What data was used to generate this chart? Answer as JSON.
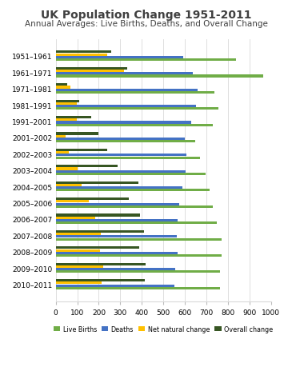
{
  "title": "UK Population Change 1951-2011",
  "subtitle": "Annual Averages: Live Births, Deaths, and Overall Change",
  "categories": [
    "1951–1961",
    "1961–1971",
    "1971–1981",
    "1981–1991",
    "1991–2001",
    "2001–2002",
    "2002–2003",
    "2003–2004",
    "2004–2005",
    "2005–2006",
    "2006–2007",
    "2007–2008",
    "2008–2009",
    "2009–2010",
    "2010–2011"
  ],
  "live_births": [
    839,
    963,
    736,
    757,
    731,
    649,
    669,
    695,
    716,
    731,
    749,
    772,
    771,
    762,
    762
  ],
  "deaths": [
    593,
    638,
    658,
    651,
    630,
    601,
    606,
    602,
    588,
    573,
    566,
    564,
    566,
    557,
    552
  ],
  "net_natural": [
    238,
    318,
    68,
    98,
    98,
    47,
    61,
    100,
    121,
    153,
    183,
    209,
    207,
    220,
    213
  ],
  "overall": [
    258,
    333,
    54,
    108,
    165,
    198,
    238,
    287,
    385,
    340,
    392,
    411,
    387,
    417,
    413
  ],
  "colors": {
    "live_births": "#70AD47",
    "deaths": "#4472C4",
    "net_natural": "#FFC000",
    "overall": "#375623"
  },
  "legend_labels": [
    "Live Births",
    "Deaths",
    "Net natural change",
    "Overall change"
  ],
  "xlim": [
    0,
    1000
  ],
  "xticks": [
    0,
    100,
    200,
    300,
    400,
    500,
    600,
    700,
    800,
    900,
    1000
  ],
  "background_color": "#FFFFFF",
  "title_fontsize": 10,
  "subtitle_fontsize": 7.5
}
